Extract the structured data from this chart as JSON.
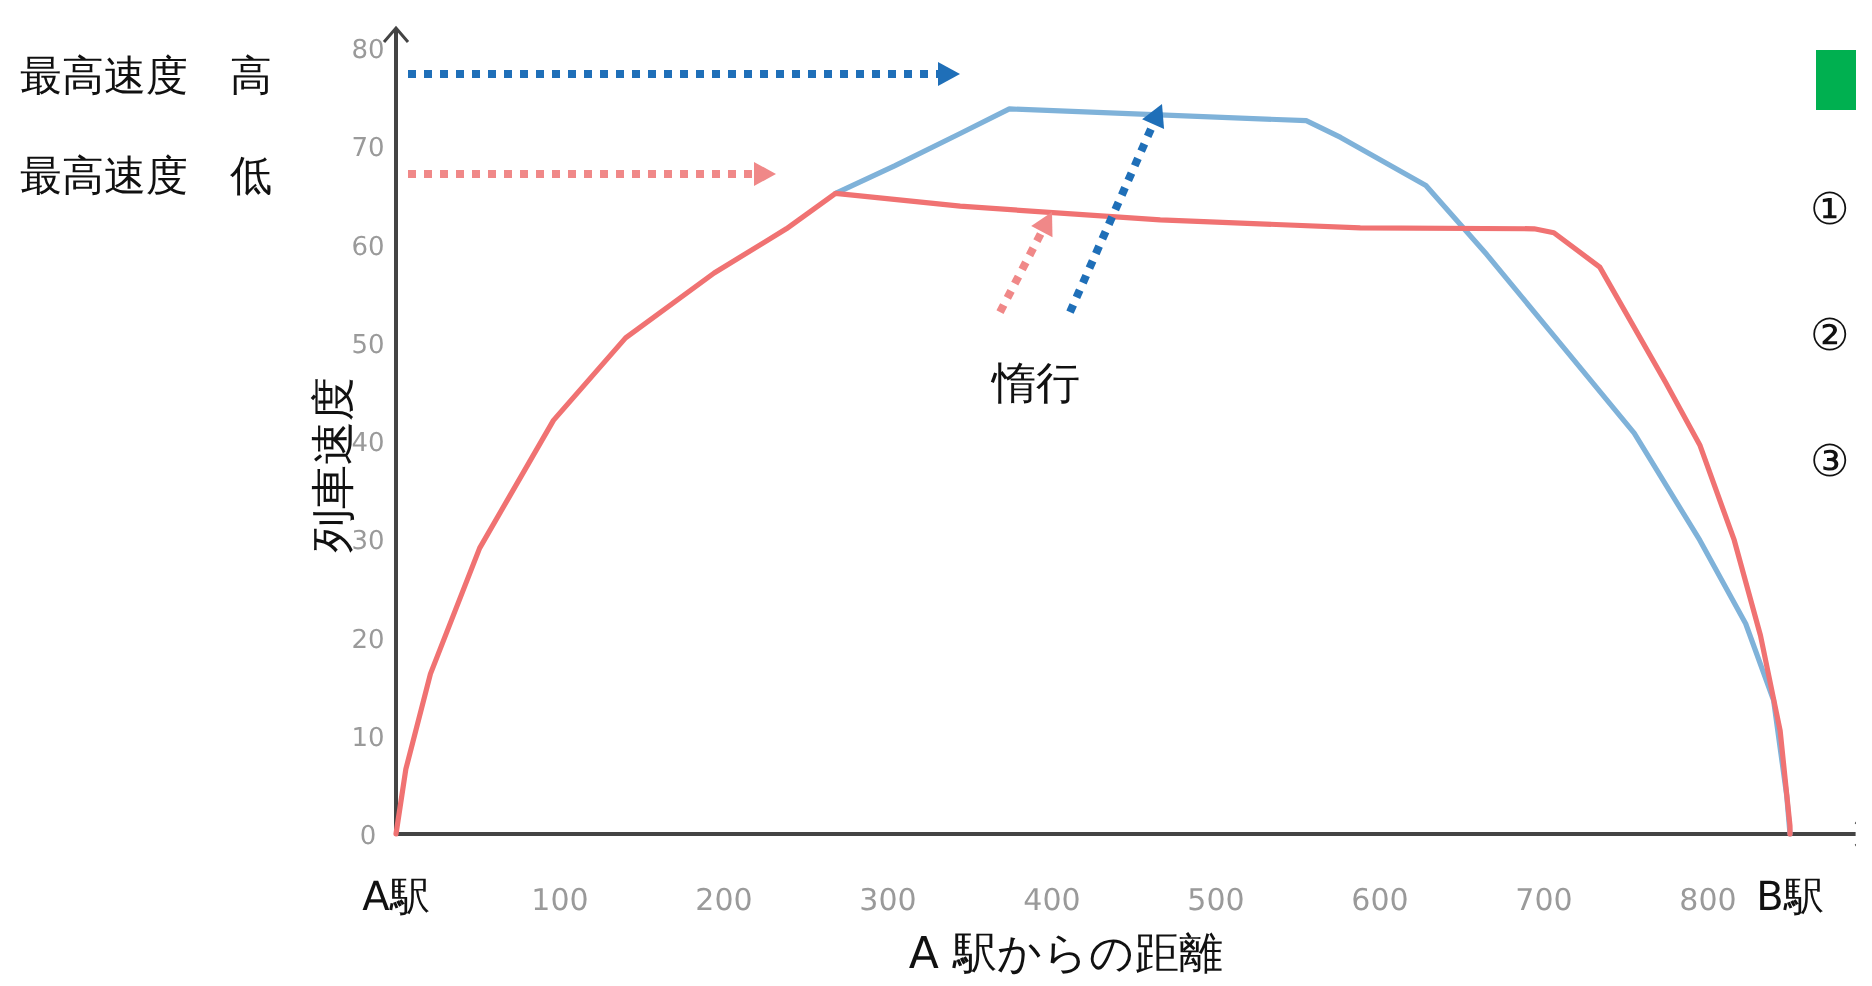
{
  "chart_data": {
    "type": "line",
    "xlabel": "A 駅からの距離",
    "ylabel": "列車速度",
    "xlim": [
      0,
      890
    ],
    "ylim": [
      0,
      80
    ],
    "xticks": [
      {
        "value": 0,
        "label": "A駅"
      },
      100,
      200,
      300,
      400,
      500,
      600,
      700,
      800,
      {
        "value": 850,
        "label": "B駅"
      }
    ],
    "yticks": [
      0,
      10,
      20,
      30,
      40,
      50,
      60,
      70,
      80
    ],
    "series": [
      {
        "color": "#7fb2d9",
        "x": [
          268,
          304,
          344,
          374,
          555,
          576,
          628,
          665,
          713,
          755,
          795,
          823,
          840,
          848,
          850
        ],
        "values": [
          65.2,
          68,
          71.3,
          73.8,
          72.6,
          70.9,
          66,
          59,
          49.3,
          40.8,
          29.9,
          21.4,
          13.6,
          3.9,
          0
        ]
      },
      {
        "color": "#f07272",
        "x": [
          0,
          6,
          21,
          51,
          96,
          140,
          194,
          238,
          268,
          344,
          466,
          588,
          694,
          706,
          734,
          774,
          795,
          816,
          832,
          844,
          850,
          850
        ],
        "values": [
          0,
          6.6,
          16.3,
          29.1,
          42.1,
          50.5,
          57.1,
          61.6,
          65.2,
          63.9,
          62.5,
          61.7,
          61.6,
          61.2,
          57.7,
          46,
          39.6,
          29.9,
          20.2,
          10.5,
          0.8,
          0
        ]
      }
    ],
    "line_style": "solid",
    "annotations": [
      "最高速度　高",
      "最高速度　低",
      {
        "text": "惰行",
        "x": 400,
        "y": 63.3
      },
      "①",
      "②",
      "③"
    ]
  }
}
